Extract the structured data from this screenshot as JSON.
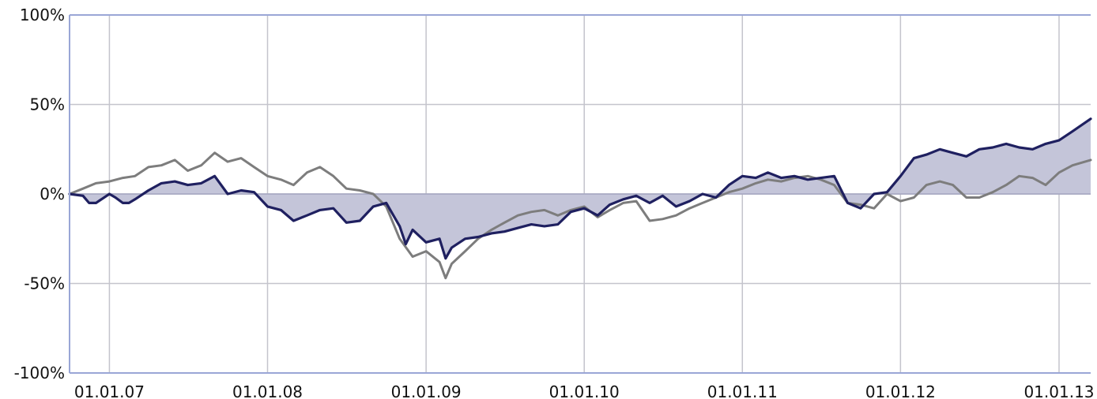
{
  "chart_data": {
    "type": "line",
    "title": "",
    "xlabel": "",
    "ylabel": "",
    "ylim": [
      -100,
      100
    ],
    "xlim": [
      "2006-10-01",
      "2013-03-15"
    ],
    "y_ticks": [
      {
        "value": 100,
        "label": "100%"
      },
      {
        "value": 50,
        "label": "50%"
      },
      {
        "value": 0,
        "label": "0%"
      },
      {
        "value": -50,
        "label": "-50%"
      },
      {
        "value": -100,
        "label": "-100%"
      }
    ],
    "x_ticks": [
      {
        "date": "2007-01-01",
        "label": "01.01.07"
      },
      {
        "date": "2008-01-01",
        "label": "01.01.08"
      },
      {
        "date": "2009-01-01",
        "label": "01.01.09"
      },
      {
        "date": "2010-01-01",
        "label": "01.01.10"
      },
      {
        "date": "2011-01-01",
        "label": "01.01.11"
      },
      {
        "date": "2012-01-01",
        "label": "01.01.12"
      },
      {
        "date": "2013-01-01",
        "label": "01.01.13"
      }
    ],
    "grid": true,
    "legend": "none",
    "colors": {
      "primary_line": "#1f2060",
      "secondary_line": "#7d7d7d",
      "fill": "#c4c5d9",
      "grid": "#c4c4cc",
      "axis": "#9aa6d6"
    },
    "series": [
      {
        "role": "primary",
        "points": [
          [
            "2006-10-01",
            0
          ],
          [
            "2006-11-01",
            -1
          ],
          [
            "2006-11-15",
            -5
          ],
          [
            "2006-12-01",
            -5
          ],
          [
            "2007-01-01",
            0
          ],
          [
            "2007-01-15",
            -2
          ],
          [
            "2007-02-01",
            -5
          ],
          [
            "2007-02-15",
            -5
          ],
          [
            "2007-03-01",
            -3
          ],
          [
            "2007-04-01",
            2
          ],
          [
            "2007-05-01",
            6
          ],
          [
            "2007-06-01",
            7
          ],
          [
            "2007-07-01",
            5
          ],
          [
            "2007-08-01",
            6
          ],
          [
            "2007-09-01",
            10
          ],
          [
            "2007-10-01",
            0
          ],
          [
            "2007-11-01",
            2
          ],
          [
            "2007-12-01",
            1
          ],
          [
            "2008-01-01",
            -7
          ],
          [
            "2008-02-01",
            -9
          ],
          [
            "2008-03-01",
            -15
          ],
          [
            "2008-04-01",
            -12
          ],
          [
            "2008-05-01",
            -9
          ],
          [
            "2008-06-01",
            -8
          ],
          [
            "2008-07-01",
            -16
          ],
          [
            "2008-08-01",
            -15
          ],
          [
            "2008-09-01",
            -7
          ],
          [
            "2008-10-01",
            -5
          ],
          [
            "2008-11-01",
            -18
          ],
          [
            "2008-11-15",
            -28
          ],
          [
            "2008-12-01",
            -20
          ],
          [
            "2009-01-01",
            -27
          ],
          [
            "2009-02-01",
            -25
          ],
          [
            "2009-02-15",
            -36
          ],
          [
            "2009-03-01",
            -30
          ],
          [
            "2009-04-01",
            -25
          ],
          [
            "2009-05-01",
            -24
          ],
          [
            "2009-06-01",
            -22
          ],
          [
            "2009-07-01",
            -21
          ],
          [
            "2009-08-01",
            -19
          ],
          [
            "2009-09-01",
            -17
          ],
          [
            "2009-10-01",
            -18
          ],
          [
            "2009-11-01",
            -17
          ],
          [
            "2009-12-01",
            -10
          ],
          [
            "2010-01-01",
            -8
          ],
          [
            "2010-02-01",
            -12
          ],
          [
            "2010-03-01",
            -6
          ],
          [
            "2010-04-01",
            -3
          ],
          [
            "2010-05-01",
            -1
          ],
          [
            "2010-06-01",
            -5
          ],
          [
            "2010-07-01",
            -1
          ],
          [
            "2010-08-01",
            -7
          ],
          [
            "2010-09-01",
            -4
          ],
          [
            "2010-10-01",
            0
          ],
          [
            "2010-11-01",
            -2
          ],
          [
            "2010-12-01",
            5
          ],
          [
            "2011-01-01",
            10
          ],
          [
            "2011-02-01",
            9
          ],
          [
            "2011-03-01",
            12
          ],
          [
            "2011-04-01",
            9
          ],
          [
            "2011-05-01",
            10
          ],
          [
            "2011-06-01",
            8
          ],
          [
            "2011-07-01",
            9
          ],
          [
            "2011-08-01",
            10
          ],
          [
            "2011-09-01",
            -5
          ],
          [
            "2011-10-01",
            -8
          ],
          [
            "2011-11-01",
            0
          ],
          [
            "2011-12-01",
            1
          ],
          [
            "2012-01-01",
            10
          ],
          [
            "2012-02-01",
            20
          ],
          [
            "2012-03-01",
            22
          ],
          [
            "2012-04-01",
            25
          ],
          [
            "2012-05-01",
            23
          ],
          [
            "2012-06-01",
            21
          ],
          [
            "2012-07-01",
            25
          ],
          [
            "2012-08-01",
            26
          ],
          [
            "2012-09-01",
            28
          ],
          [
            "2012-10-01",
            26
          ],
          [
            "2012-11-01",
            25
          ],
          [
            "2012-12-01",
            28
          ],
          [
            "2013-01-01",
            30
          ],
          [
            "2013-02-01",
            35
          ],
          [
            "2013-03-15",
            42
          ]
        ]
      },
      {
        "role": "secondary",
        "points": [
          [
            "2006-10-01",
            0
          ],
          [
            "2006-11-01",
            3
          ],
          [
            "2006-12-01",
            6
          ],
          [
            "2007-01-01",
            7
          ],
          [
            "2007-02-01",
            9
          ],
          [
            "2007-03-01",
            10
          ],
          [
            "2007-04-01",
            15
          ],
          [
            "2007-05-01",
            16
          ],
          [
            "2007-06-01",
            19
          ],
          [
            "2007-07-01",
            13
          ],
          [
            "2007-08-01",
            16
          ],
          [
            "2007-09-01",
            23
          ],
          [
            "2007-10-01",
            18
          ],
          [
            "2007-11-01",
            20
          ],
          [
            "2007-12-01",
            15
          ],
          [
            "2008-01-01",
            10
          ],
          [
            "2008-02-01",
            8
          ],
          [
            "2008-03-01",
            5
          ],
          [
            "2008-04-01",
            12
          ],
          [
            "2008-05-01",
            15
          ],
          [
            "2008-06-01",
            10
          ],
          [
            "2008-07-01",
            3
          ],
          [
            "2008-08-01",
            2
          ],
          [
            "2008-09-01",
            0
          ],
          [
            "2008-10-01",
            -7
          ],
          [
            "2008-11-01",
            -25
          ],
          [
            "2008-12-01",
            -35
          ],
          [
            "2009-01-01",
            -32
          ],
          [
            "2009-02-01",
            -38
          ],
          [
            "2009-02-15",
            -47
          ],
          [
            "2009-03-01",
            -39
          ],
          [
            "2009-04-01",
            -32
          ],
          [
            "2009-05-01",
            -25
          ],
          [
            "2009-06-01",
            -20
          ],
          [
            "2009-07-01",
            -16
          ],
          [
            "2009-08-01",
            -12
          ],
          [
            "2009-09-01",
            -10
          ],
          [
            "2009-10-01",
            -9
          ],
          [
            "2009-11-01",
            -12
          ],
          [
            "2009-12-01",
            -9
          ],
          [
            "2010-01-01",
            -7
          ],
          [
            "2010-02-01",
            -13
          ],
          [
            "2010-03-01",
            -9
          ],
          [
            "2010-04-01",
            -5
          ],
          [
            "2010-05-01",
            -4
          ],
          [
            "2010-06-01",
            -15
          ],
          [
            "2010-07-01",
            -14
          ],
          [
            "2010-08-01",
            -12
          ],
          [
            "2010-09-01",
            -8
          ],
          [
            "2010-10-01",
            -5
          ],
          [
            "2010-11-01",
            -2
          ],
          [
            "2010-12-01",
            1
          ],
          [
            "2011-01-01",
            3
          ],
          [
            "2011-02-01",
            6
          ],
          [
            "2011-03-01",
            8
          ],
          [
            "2011-04-01",
            7
          ],
          [
            "2011-05-01",
            9
          ],
          [
            "2011-06-01",
            10
          ],
          [
            "2011-07-01",
            8
          ],
          [
            "2011-08-01",
            5
          ],
          [
            "2011-09-01",
            -5
          ],
          [
            "2011-10-01",
            -6
          ],
          [
            "2011-11-01",
            -8
          ],
          [
            "2011-12-01",
            0
          ],
          [
            "2012-01-01",
            -4
          ],
          [
            "2012-02-01",
            -2
          ],
          [
            "2012-03-01",
            5
          ],
          [
            "2012-04-01",
            7
          ],
          [
            "2012-05-01",
            5
          ],
          [
            "2012-06-01",
            -2
          ],
          [
            "2012-07-01",
            -2
          ],
          [
            "2012-08-01",
            1
          ],
          [
            "2012-09-01",
            5
          ],
          [
            "2012-10-01",
            10
          ],
          [
            "2012-11-01",
            9
          ],
          [
            "2012-12-01",
            5
          ],
          [
            "2013-01-01",
            12
          ],
          [
            "2013-02-01",
            16
          ],
          [
            "2013-03-15",
            19
          ]
        ]
      }
    ]
  }
}
